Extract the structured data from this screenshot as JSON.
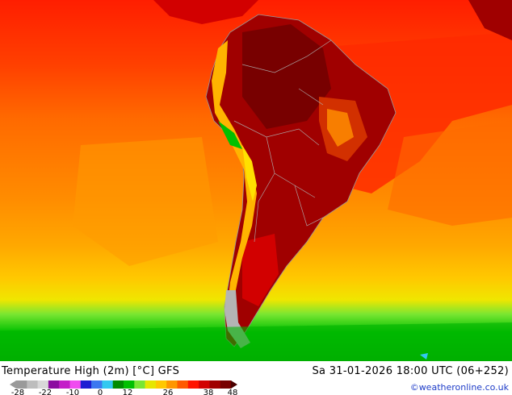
{
  "title": "Temperature High (2m) [°C] GFS",
  "valid_time": "Sa 31-01-2026 18:00 UTC (06+252)",
  "credit": "©weatheronline.co.uk",
  "legend": {
    "ticks": [
      "-28",
      "-22",
      "-10",
      "0",
      "12",
      "26",
      "38",
      "48"
    ],
    "colors": [
      "#9a9a9a",
      "#bdbdbd",
      "#d8d8d8",
      "#8c0ca0",
      "#c41ec8",
      "#f04cf0",
      "#1e1ed2",
      "#3c78f0",
      "#32c8f0",
      "#008c00",
      "#00c000",
      "#7ae632",
      "#e6e600",
      "#ffc800",
      "#ff9600",
      "#ff5a00",
      "#ff1400",
      "#d20000",
      "#a00000",
      "#780000"
    ]
  },
  "map": {
    "colors": {
      "ocean_north": "#ff2a00",
      "ocean_mid": "#ff6a00",
      "ocean_south": "#ffa400",
      "yellow": "#f0e000",
      "green_light": "#7ae632",
      "green": "#00c000",
      "green_dark": "#009a00",
      "land_hot": "#a00000",
      "land_very_hot": "#780000",
      "land_warm": "#d20000",
      "andes": "#ffb400",
      "snow": "#b4b4b4"
    }
  }
}
